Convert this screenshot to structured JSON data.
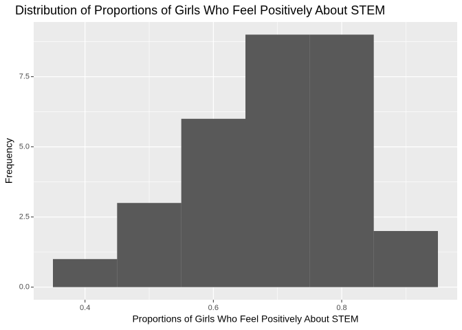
{
  "chart_data": {
    "type": "histogram",
    "title": "Distribution of Proportions of Girls Who Feel Positively About STEM",
    "x_label": "Proportions of Girls Who Feel Positively About STEM",
    "y_label": "Frequency",
    "bins": [
      0.35,
      0.45,
      0.55,
      0.65,
      0.75,
      0.85,
      0.95
    ],
    "values": [
      1,
      3,
      6,
      9,
      9,
      2
    ],
    "color": "#595959",
    "xlim": [
      0.32,
      0.98
    ],
    "ylim": [
      -0.45,
      9.45
    ],
    "xticks": [
      0.4,
      0.6,
      0.8
    ],
    "yticks": [
      {
        "value": 0,
        "label": "0.0"
      },
      2.5,
      {
        "value": 5,
        "label": "5.0"
      },
      7.5
    ],
    "xminorticks": [
      0.5,
      0.7,
      0.9
    ],
    "yminorticks": [
      1.25,
      3.75,
      6.25,
      8.75
    ],
    "grid": true
  }
}
